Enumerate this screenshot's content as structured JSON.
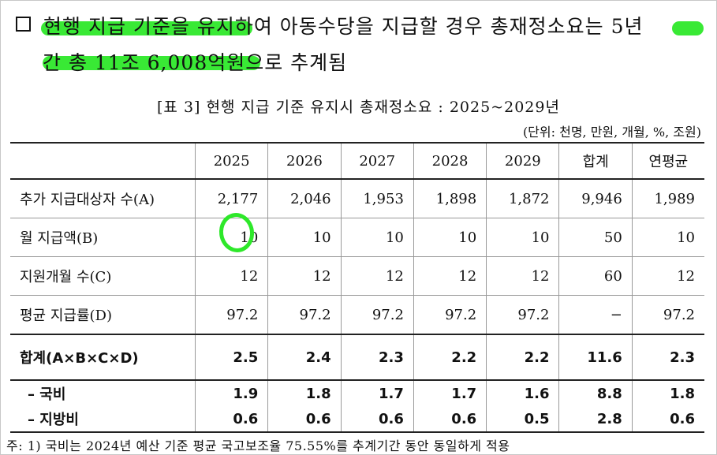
{
  "bullet_symbol": "❑",
  "summary": {
    "line1": "현행 지급 기준을 유지하여 아동수당을 지급할 경우 총재정소요는 5년",
    "line2": "간 총 11조 6,008억원으로 추계됨"
  },
  "table_caption": "[표 3] 현행 지급 기준 유지시 총재정소요 : 2025~2029년",
  "unit_note": "(단위: 천명, 만원, 개월, %, 조원)",
  "table": {
    "headers": [
      "",
      "2025",
      "2026",
      "2027",
      "2028",
      "2029",
      "합계",
      "연평균"
    ],
    "rows": [
      [
        "추가 지급대상자 수(A)",
        "2,177",
        "2,046",
        "1,953",
        "1,898",
        "1,872",
        "9,946",
        "1,989"
      ],
      [
        "월 지급액(B)",
        "10",
        "10",
        "10",
        "10",
        "10",
        "50",
        "10"
      ],
      [
        "지원개월 수(C)",
        "12",
        "12",
        "12",
        "12",
        "12",
        "60",
        "12"
      ],
      [
        "평균 지급률(D)",
        "97.2",
        "97.2",
        "97.2",
        "97.2",
        "97.2",
        "−",
        "97.2"
      ]
    ],
    "total_row": [
      "합계(A×B×C×D)",
      "2.5",
      "2.4",
      "2.3",
      "2.2",
      "2.2",
      "11.6",
      "2.3"
    ],
    "sub_rows": [
      [
        "– 국비",
        "1.9",
        "1.8",
        "1.7",
        "1.7",
        "1.6",
        "8.8",
        "1.8"
      ],
      [
        "– 지방비",
        "0.6",
        "0.6",
        "0.6",
        "0.6",
        "0.5",
        "2.8",
        "0.6"
      ]
    ]
  },
  "footnote": "주: 1) 국비는 2024년 예산 기준 평균 국고보조율 75.55%를 추계기간 동안 동일하게 적용",
  "colors": {
    "highlight": "#2ee82a",
    "text": "#111111"
  }
}
